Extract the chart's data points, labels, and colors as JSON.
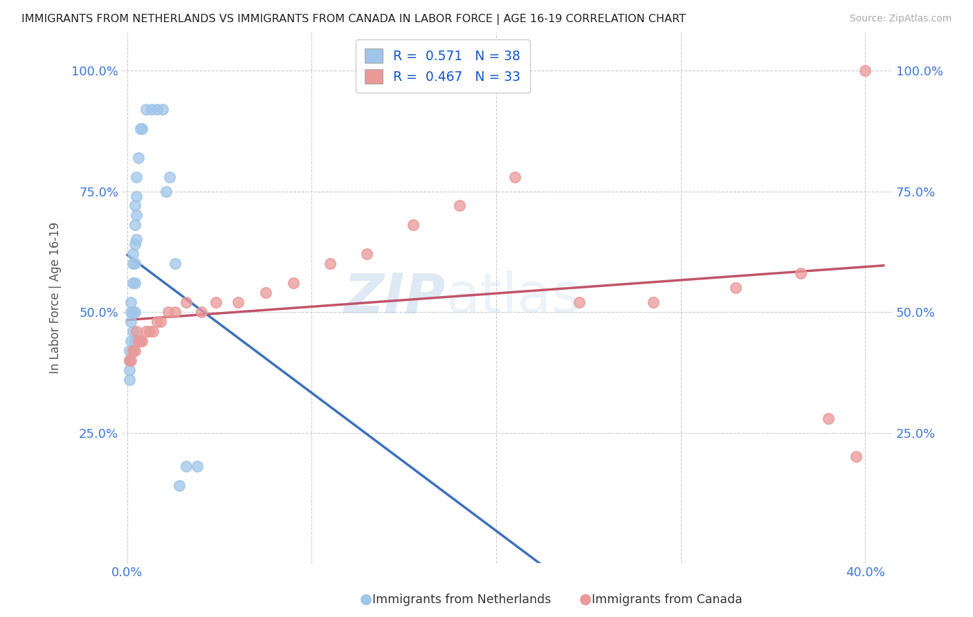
{
  "title": "IMMIGRANTS FROM NETHERLANDS VS IMMIGRANTS FROM CANADA IN LABOR FORCE | AGE 16-19 CORRELATION CHART",
  "source": "Source: ZipAtlas.com",
  "ylabel": "In Labor Force | Age 16-19",
  "xlim": [
    -0.003,
    0.415
  ],
  "ylim": [
    -0.02,
    1.08
  ],
  "x_ticks": [
    0.0,
    0.1,
    0.2,
    0.3,
    0.4
  ],
  "y_ticks": [
    0.25,
    0.5,
    0.75,
    1.0
  ],
  "netherlands_scatter_color": "#9fc5e8",
  "canada_scatter_color": "#ea9999",
  "netherlands_line_color": "#3d6fbe",
  "canada_line_color": "#c0546a",
  "r_netherlands": 0.571,
  "n_netherlands": 38,
  "r_canada": 0.467,
  "n_canada": 33,
  "legend_r_color": "#1155cc",
  "watermark_zip": "ZIP",
  "watermark_atlas": "atlas",
  "nl_x": [
    0.001,
    0.001,
    0.001,
    0.001,
    0.002,
    0.002,
    0.002,
    0.002,
    0.003,
    0.003,
    0.003,
    0.003,
    0.003,
    0.003,
    0.004,
    0.004,
    0.004,
    0.004,
    0.004,
    0.004,
    0.004,
    0.005,
    0.005,
    0.005,
    0.005,
    0.006,
    0.007,
    0.008,
    0.01,
    0.013,
    0.016,
    0.019,
    0.021,
    0.023,
    0.026,
    0.028,
    0.032,
    0.038
  ],
  "nl_y": [
    0.42,
    0.4,
    0.38,
    0.36,
    0.52,
    0.5,
    0.48,
    0.44,
    0.62,
    0.6,
    0.56,
    0.5,
    0.46,
    0.42,
    0.72,
    0.68,
    0.64,
    0.6,
    0.56,
    0.5,
    0.44,
    0.78,
    0.74,
    0.7,
    0.65,
    0.82,
    0.88,
    0.88,
    0.92,
    0.92,
    0.92,
    0.92,
    0.75,
    0.78,
    0.6,
    0.14,
    0.18,
    0.18
  ],
  "ca_x": [
    0.001,
    0.002,
    0.003,
    0.004,
    0.005,
    0.006,
    0.007,
    0.008,
    0.01,
    0.012,
    0.014,
    0.016,
    0.018,
    0.022,
    0.026,
    0.032,
    0.04,
    0.048,
    0.06,
    0.075,
    0.09,
    0.11,
    0.13,
    0.155,
    0.18,
    0.21,
    0.245,
    0.285,
    0.33,
    0.365,
    0.38,
    0.395,
    0.4
  ],
  "ca_y": [
    0.4,
    0.4,
    0.42,
    0.42,
    0.46,
    0.44,
    0.44,
    0.44,
    0.46,
    0.46,
    0.46,
    0.48,
    0.48,
    0.5,
    0.5,
    0.52,
    0.5,
    0.52,
    0.52,
    0.54,
    0.56,
    0.6,
    0.62,
    0.68,
    0.72,
    0.78,
    0.52,
    0.52,
    0.55,
    0.58,
    0.28,
    0.2,
    1.0
  ]
}
